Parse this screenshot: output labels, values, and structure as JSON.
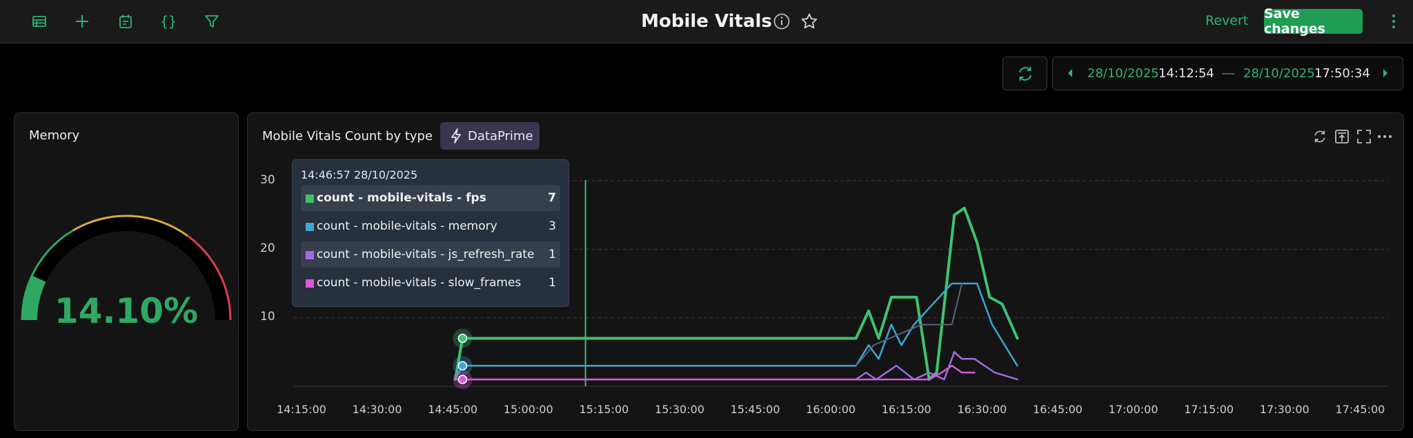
{
  "header": {
    "title": "Mobile Vitals",
    "revert_label": "Revert",
    "save_label": "Save changes"
  },
  "time_range": {
    "start_date": "28/10/2025",
    "start_time": "14:12:54",
    "end_date": "28/10/2025",
    "end_time": "17:50:34"
  },
  "memory_panel": {
    "title": "Memory",
    "value": "14.10%",
    "fraction": 0.141
  },
  "chart_panel": {
    "title": "Mobile Vitals Count by type",
    "badge": "DataPrime"
  },
  "tooltip": {
    "time": "14:46:57 28/10/2025",
    "rows": [
      {
        "label": "count - mobile-vitals - fps",
        "value": "7",
        "color": "#3cc36f"
      },
      {
        "label": "count - mobile-vitals - memory",
        "value": "3",
        "color": "#3aa7d4"
      },
      {
        "label": "count - mobile-vitals - js_refresh_rate",
        "value": "1",
        "color": "#a26be3"
      },
      {
        "label": "count - mobile-vitals - slow_frames",
        "value": "1",
        "color": "#d75bd6"
      }
    ]
  },
  "chart_data": {
    "type": "line",
    "x_ticks": [
      "14:15:00",
      "14:30:00",
      "14:45:00",
      "15:00:00",
      "15:15:00",
      "15:30:00",
      "15:45:00",
      "16:00:00",
      "16:15:00",
      "16:30:00",
      "16:45:00",
      "17:00:00",
      "17:15:00",
      "17:30:00",
      "17:45:00"
    ],
    "y_ticks": [
      "10",
      "20",
      "30"
    ],
    "ylim": [
      0,
      30
    ],
    "xlim": [
      "14:12:54",
      "17:50:34"
    ],
    "grid": true,
    "series": [
      {
        "name": "count - mobile-vitals - fps",
        "color": "#3cc36f",
        "width": 4,
        "points": [
          [
            "14:45:30",
            1
          ],
          [
            "14:46:57",
            7
          ],
          [
            "16:05:00",
            7
          ],
          [
            "16:07:30",
            11
          ],
          [
            "16:09:30",
            7
          ],
          [
            "16:12:00",
            13
          ],
          [
            "16:17:00",
            13
          ],
          [
            "16:19:30",
            1
          ],
          [
            "16:21:00",
            2
          ],
          [
            "16:24:30",
            25
          ],
          [
            "16:26:30",
            26
          ],
          [
            "16:29:00",
            21
          ],
          [
            "16:31:30",
            13
          ],
          [
            "16:34:00",
            12
          ],
          [
            "16:37:00",
            7
          ]
        ]
      },
      {
        "name": "count - mobile-vitals - memory",
        "color": "#3aa7d4",
        "width": 2.5,
        "points": [
          [
            "14:45:30",
            1
          ],
          [
            "14:46:57",
            3
          ],
          [
            "16:05:00",
            3
          ],
          [
            "16:07:30",
            6
          ],
          [
            "16:09:30",
            4
          ],
          [
            "16:12:00",
            9
          ],
          [
            "16:14:00",
            6
          ],
          [
            "16:16:30",
            9
          ],
          [
            "16:19:00",
            11
          ],
          [
            "16:24:00",
            15
          ],
          [
            "16:29:00",
            15
          ],
          [
            "16:32:00",
            9
          ],
          [
            "16:37:00",
            3
          ]
        ]
      },
      {
        "name": "count - mobile-vitals - js_refresh_rate",
        "color": "#a26be3",
        "width": 2.5,
        "points": [
          [
            "14:45:30",
            1
          ],
          [
            "16:05:00",
            1
          ],
          [
            "16:07:00",
            2
          ],
          [
            "16:09:00",
            1
          ],
          [
            "16:13:00",
            3
          ],
          [
            "16:16:30",
            1
          ],
          [
            "16:19:30",
            2
          ],
          [
            "16:22:30",
            1
          ],
          [
            "16:24:30",
            5
          ],
          [
            "16:26:00",
            4
          ],
          [
            "16:28:30",
            4
          ],
          [
            "16:32:30",
            2
          ],
          [
            "16:37:00",
            1
          ]
        ]
      },
      {
        "name": "count - mobile-vitals - slow_frames",
        "color": "#d75bd6",
        "width": 2.5,
        "points": [
          [
            "14:45:30",
            1
          ],
          [
            "16:19:30",
            1
          ],
          [
            "16:22:00",
            2
          ],
          [
            "16:24:00",
            3
          ],
          [
            "16:26:00",
            2
          ],
          [
            "16:28:30",
            2
          ]
        ]
      },
      {
        "name": "",
        "color": "#556777",
        "width": 2,
        "points": [
          [
            "16:05:00",
            3
          ],
          [
            "16:08:30",
            6
          ],
          [
            "16:18:00",
            9
          ],
          [
            "16:24:00",
            9
          ],
          [
            "16:26:00",
            15
          ]
        ]
      }
    ],
    "cursor_x": "15:11:20",
    "markers": [
      {
        "x": "14:46:57",
        "y": 7,
        "color": "#3cc36f"
      },
      {
        "x": "14:46:57",
        "y": 3,
        "color": "#3aa7d4"
      },
      {
        "x": "14:46:57",
        "y": 1,
        "color": "#d75bd6"
      }
    ]
  }
}
